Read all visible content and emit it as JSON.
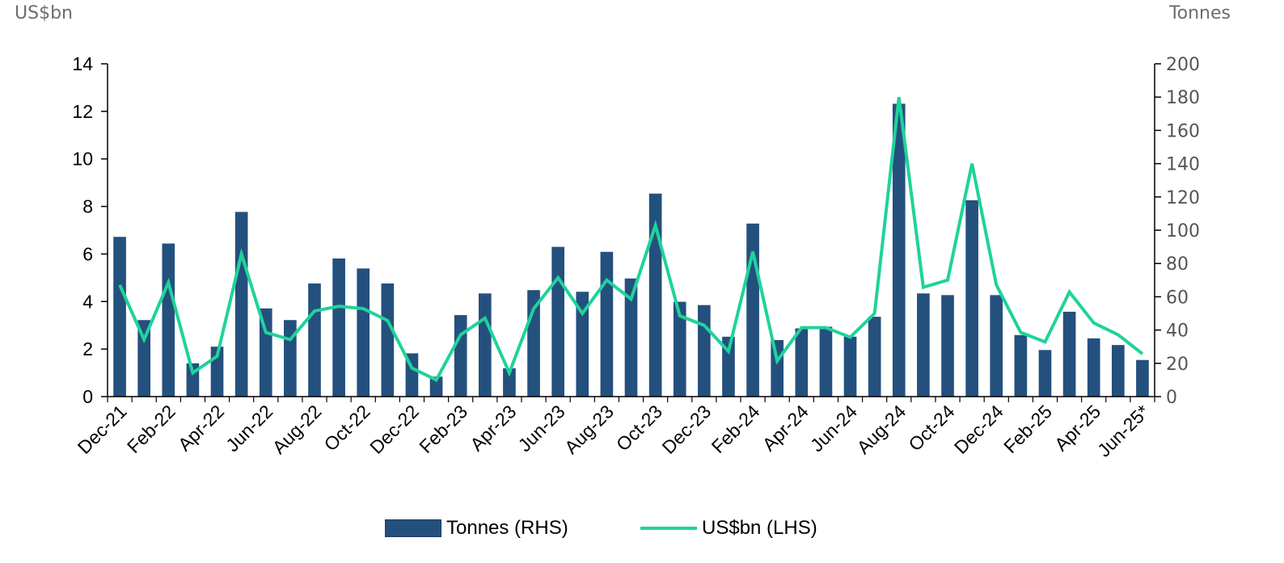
{
  "unit_left": "US$bn",
  "unit_right": "Tonnes",
  "colors": {
    "bar": "#24507e",
    "line": "#1fd39a",
    "axis": "#000000"
  },
  "chart_data": {
    "type": "bar",
    "x_labels_shown": [
      "Dec-21",
      "Feb-22",
      "Apr-22",
      "Jun-22",
      "Aug-22",
      "Oct-22",
      "Dec-22",
      "Feb-23",
      "Apr-23",
      "Jun-23",
      "Aug-23",
      "Oct-23",
      "Dec-23",
      "Feb-24",
      "Apr-24",
      "Jun-24",
      "Aug-24",
      "Oct-24",
      "Dec-24",
      "Feb-25",
      "Apr-25",
      "Jun-25*"
    ],
    "y_left": {
      "ticks": [
        0,
        2,
        4,
        6,
        8,
        10,
        12,
        14
      ],
      "ylim": [
        0,
        14
      ]
    },
    "y_right": {
      "ticks": [
        0,
        20,
        40,
        60,
        80,
        100,
        120,
        140,
        160,
        180,
        200
      ],
      "ylim": [
        0,
        200
      ]
    },
    "series": [
      {
        "name": "Tonnes (RHS)",
        "type": "bar",
        "axis": "right",
        "values": [
          96,
          46,
          92,
          20,
          30,
          111,
          53,
          46,
          68,
          83,
          77,
          68,
          26,
          12,
          49,
          62,
          17,
          64,
          90,
          63,
          87,
          71,
          122,
          57,
          55,
          36,
          104,
          34,
          41,
          42,
          36,
          48,
          176,
          62,
          61,
          118,
          61,
          37,
          28,
          51,
          35,
          31,
          22
        ]
      },
      {
        "name": "US$bn (LHS)",
        "type": "line",
        "axis": "left",
        "values": [
          4.7,
          2.4,
          4.8,
          1.0,
          1.7,
          6.0,
          2.7,
          2.4,
          3.6,
          3.8,
          3.7,
          3.2,
          1.2,
          0.7,
          2.6,
          3.3,
          1.0,
          3.7,
          5.0,
          3.5,
          4.9,
          4.1,
          7.2,
          3.4,
          3.0,
          1.9,
          6.1,
          1.5,
          2.9,
          2.9,
          2.5,
          3.5,
          12.6,
          4.6,
          4.9,
          9.8,
          4.7,
          2.7,
          2.3,
          4.4,
          3.1,
          2.6,
          1.8
        ]
      }
    ]
  },
  "legend": {
    "bar_label": "Tonnes (RHS)",
    "line_label": "US$bn (LHS)"
  }
}
